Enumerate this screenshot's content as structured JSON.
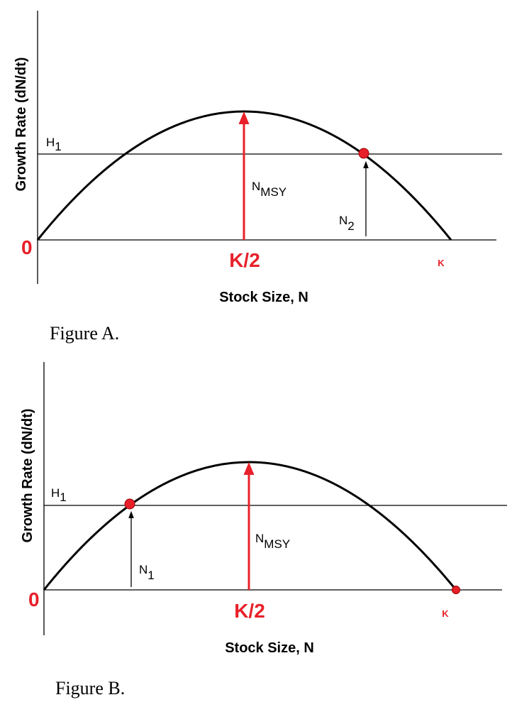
{
  "figures": [
    {
      "y_axis_label": "Growth Rate (dN/dt)",
      "x_axis_label": "Stock Size, N",
      "origin_label": "0",
      "half_k_label": "K/2",
      "k_label": "K",
      "harvest_label": {
        "main": "H",
        "sub": "1"
      },
      "msy_label": {
        "main": "N",
        "sub": "MSY"
      },
      "stock_label": {
        "main": "N",
        "sub": "2"
      },
      "caption": "Figure A."
    },
    {
      "y_axis_label": "Growth Rate (dN/dt)",
      "x_axis_label": "Stock Size, N",
      "origin_label": "0",
      "half_k_label": "K/2",
      "k_label": "K",
      "harvest_label": {
        "main": "H",
        "sub": "1"
      },
      "msy_label": {
        "main": "N",
        "sub": "MSY"
      },
      "stock_label": {
        "main": "N",
        "sub": "1"
      },
      "caption": "Figure B."
    }
  ]
}
